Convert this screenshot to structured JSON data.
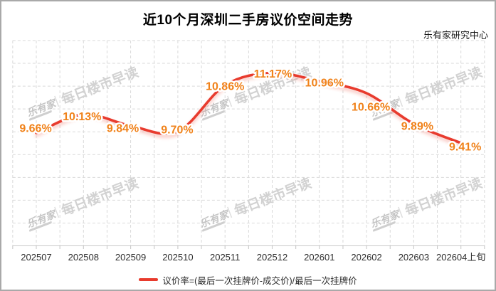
{
  "header": {
    "title": "近10个月深圳二手房议价空间走势",
    "source": "乐有家研究中心"
  },
  "legend": {
    "label": "议价率=(最后一次挂牌价-成交价)/最后一次挂牌价",
    "swatch_color": "#e83b2d"
  },
  "watermark": {
    "logo": "乐有家",
    "text": "每日楼市早读"
  },
  "colors": {
    "line": "#e83b2d",
    "data_label": "#f0821a",
    "axis_text": "#2e2e2e",
    "grid": "#d9d9d9"
  },
  "chart_data": {
    "type": "line",
    "title": "近10个月深圳二手房议价空间走势",
    "series_name": "议价率",
    "categories": [
      "202507",
      "202508",
      "202509",
      "202510",
      "202511",
      "202512",
      "202601",
      "202602",
      "202603",
      "202604上旬"
    ],
    "values": [
      9.66,
      10.13,
      9.84,
      9.7,
      10.86,
      11.17,
      10.96,
      10.66,
      9.89,
      9.41
    ],
    "labels": [
      "9.66%",
      "10.13%",
      "9.84%",
      "9.70%",
      "10.86%",
      "11.17%",
      "10.96%",
      "10.66%",
      "9.89%",
      "9.41%"
    ],
    "unit": "%",
    "smooth": true,
    "grid": true,
    "legend_position": "bottom",
    "line_color": "#e83b2d",
    "label_color": "#f0821a"
  }
}
